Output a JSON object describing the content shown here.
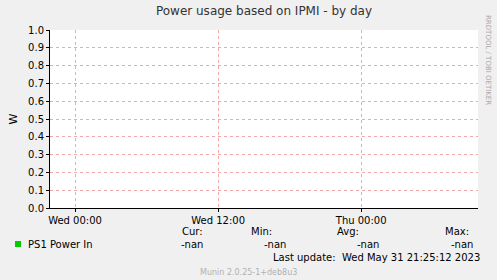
{
  "chart_data": {
    "type": "line",
    "title": "Power usage based on IPMI - by day",
    "y_label": "W",
    "x": [],
    "series": [
      {
        "name": "PS1 Power In",
        "color": "#00cc00",
        "values": []
      }
    ],
    "xlim": [
      -2.1,
      33.8
    ],
    "xticks": [
      {
        "value": 0,
        "label": "Wed 00:00"
      },
      {
        "value": 12,
        "label": "Wed 12:00"
      },
      {
        "value": 24,
        "label": "Thu 00:00"
      }
    ],
    "ylim": [
      0,
      1
    ],
    "yticks": [
      {
        "value": 0,
        "label": "0.0"
      },
      0.1,
      0.2,
      0.3,
      0.4,
      0.5,
      0.6,
      0.7,
      0.8,
      0.9,
      {
        "value": 1,
        "label": "1.0"
      }
    ],
    "grid": true,
    "summary": {
      "headers": [
        "Cur:",
        "Min:",
        "Avg:",
        "Max:"
      ],
      "values": [
        "-nan",
        "-nan",
        "-nan",
        "-nan"
      ]
    },
    "last_update": "Last update:  Wed May 31 21:25:12 2023",
    "footer": "Munin 2.0.25-1+deb8u3",
    "watermark": "RRDTOOL / TOBI OETIKER"
  }
}
